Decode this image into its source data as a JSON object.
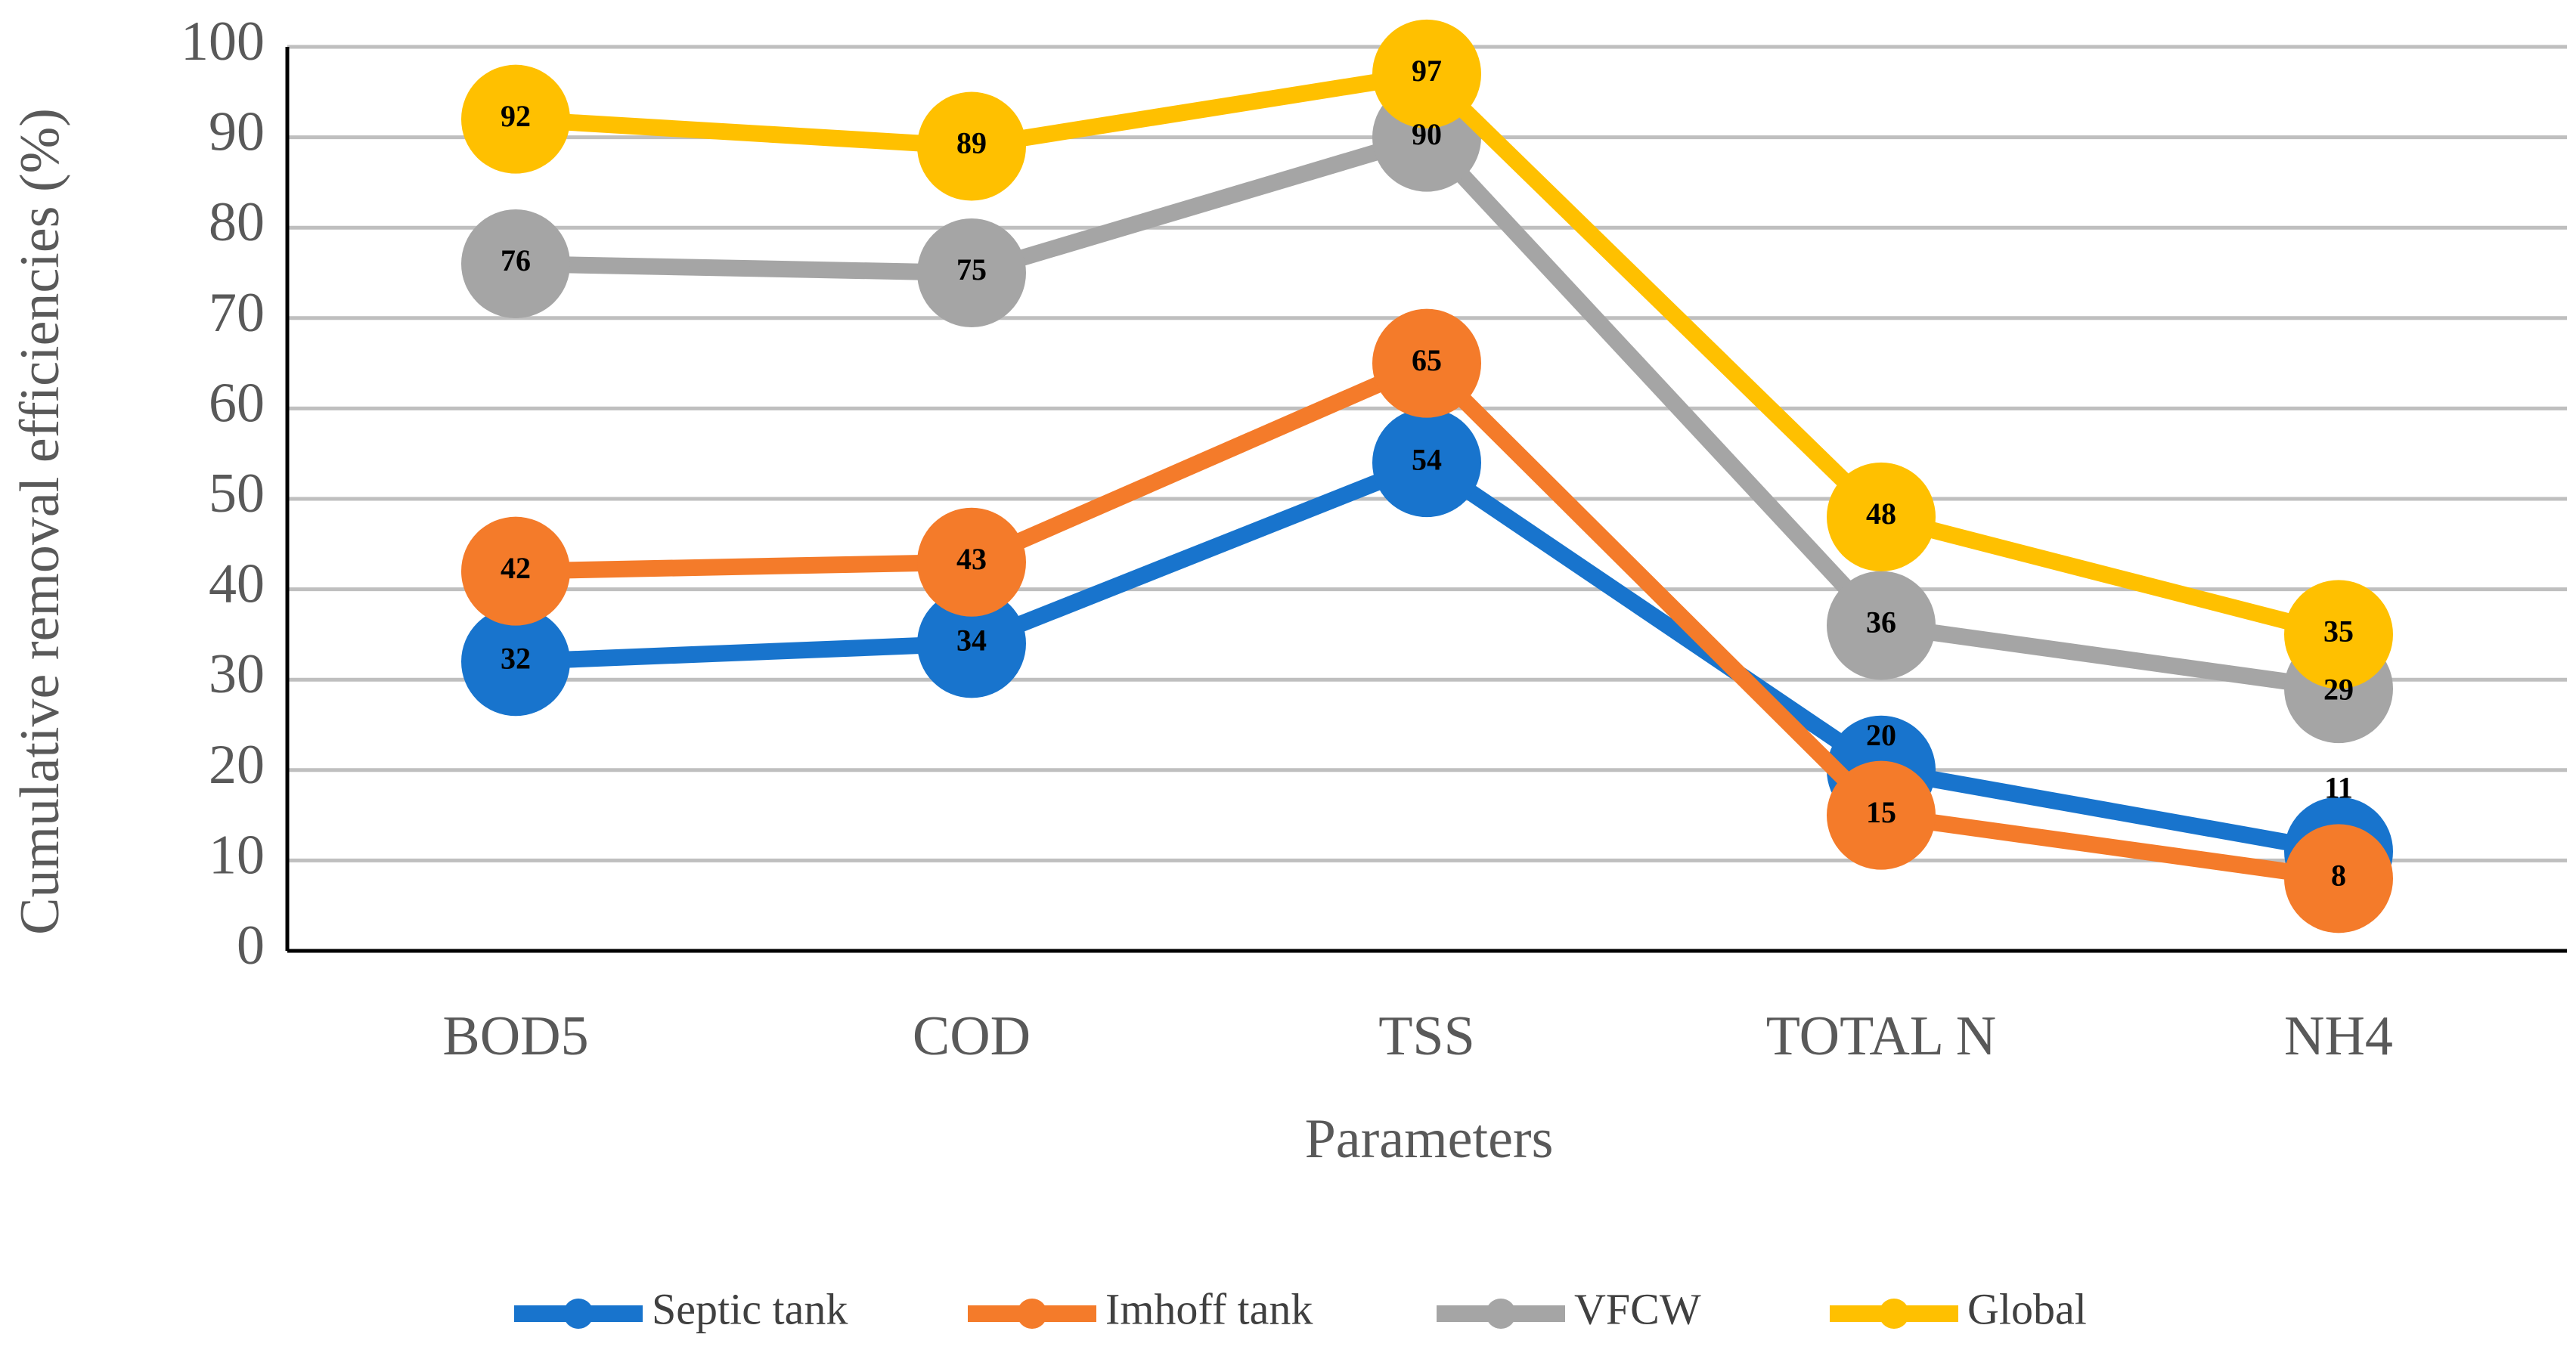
{
  "chart_data": {
    "type": "line",
    "title": "",
    "xlabel": "Parameters",
    "ylabel": "Cumulative removal efficiencies (%)",
    "ylim": [
      0,
      100
    ],
    "yticks": [
      0,
      10,
      20,
      30,
      40,
      50,
      60,
      70,
      80,
      90,
      100
    ],
    "grid": true,
    "legend_position": "bottom",
    "categories": [
      "BOD5",
      "COD",
      "TSS",
      "TOTAL N",
      "NH4"
    ],
    "series": [
      {
        "name": "Septic tank",
        "values": [
          32,
          34,
          54,
          20,
          11
        ],
        "labels": [
          "32",
          "34",
          "54",
          "20",
          "11"
        ],
        "color": "#1874CD"
      },
      {
        "name": "Imhoff tank",
        "values": [
          42,
          43,
          65,
          15,
          8
        ],
        "labels": [
          "42",
          "43",
          "65",
          "15",
          "8"
        ],
        "color": "#F47B2A"
      },
      {
        "name": "VFCW",
        "values": [
          76,
          75,
          90,
          36,
          29
        ],
        "labels": [
          "76",
          "75",
          "90",
          "36",
          "29"
        ],
        "color": "#A5A5A5"
      },
      {
        "name": "Global",
        "values": [
          92,
          89,
          97,
          48,
          35
        ],
        "labels": [
          "92",
          "89",
          "97",
          "48",
          "35"
        ],
        "color": "#FFC000"
      }
    ]
  }
}
